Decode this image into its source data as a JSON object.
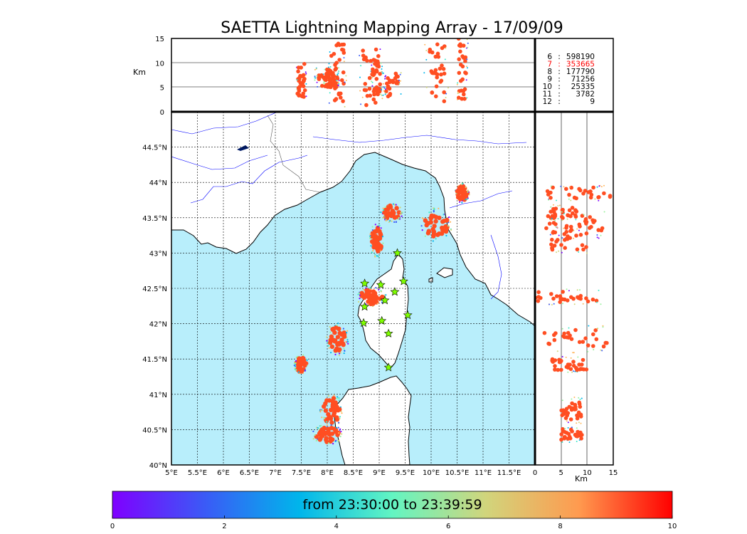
{
  "chart_data": {
    "type": "scatter",
    "title": "SAETTA Lightning Mapping Array - 17/09/09",
    "panels": {
      "map": {
        "x_ticks": [
          "5°E",
          "5.5°E",
          "6°E",
          "6.5°E",
          "7°E",
          "7.5°E",
          "8°E",
          "8.5°E",
          "9°E",
          "9.5°E",
          "10°E",
          "10.5°E",
          "11°E",
          "11.5°E"
        ],
        "y_ticks": [
          "40°N",
          "40.5°N",
          "41°N",
          "41.5°N",
          "42°N",
          "42.5°N",
          "43°N",
          "43.5°N",
          "44°N",
          "44.5°N"
        ],
        "xlim": [
          5,
          12
        ],
        "ylim": [
          40,
          45
        ]
      },
      "top": {
        "ylabel": "Km",
        "yticks": [
          "0",
          "5",
          "10",
          "15"
        ],
        "ylim": [
          0,
          15
        ]
      },
      "right": {
        "xlabel": "Km",
        "xticks": [
          "0",
          "5",
          "10",
          "15"
        ],
        "xlim": [
          0,
          15
        ]
      }
    },
    "counts_table": [
      {
        "alt": "6",
        "count": "598190",
        "highlight": false
      },
      {
        "alt": "7",
        "count": "353665",
        "highlight": true
      },
      {
        "alt": "8",
        "count": "177790",
        "highlight": false
      },
      {
        "alt": "9",
        "count": "71256",
        "highlight": false
      },
      {
        "alt": "10",
        "count": "25335",
        "highlight": false
      },
      {
        "alt": "11",
        "count": "3782",
        "highlight": false
      },
      {
        "alt": "12",
        "count": "9",
        "highlight": false
      }
    ],
    "clusters": [
      {
        "lon": 7.5,
        "lat": 41.42,
        "alt_min": 3,
        "alt_max": 10
      },
      {
        "lon": 8.2,
        "lat": 41.78,
        "alt_min": 1,
        "alt_max": 14
      },
      {
        "lon": 8.85,
        "lat": 42.38,
        "alt_min": 0,
        "alt_max": 13
      },
      {
        "lon": 8.95,
        "lat": 43.18,
        "alt_min": 3,
        "alt_max": 10
      },
      {
        "lon": 9.25,
        "lat": 43.57,
        "alt_min": 3,
        "alt_max": 8
      },
      {
        "lon": 10.1,
        "lat": 43.4,
        "alt_min": 2,
        "alt_max": 14
      },
      {
        "lon": 10.6,
        "lat": 43.85,
        "alt_min": 2,
        "alt_max": 15
      },
      {
        "lon": 8.08,
        "lat": 40.77,
        "alt_min": 5,
        "alt_max": 9
      },
      {
        "lon": 8.0,
        "lat": 40.43,
        "alt_min": 5,
        "alt_max": 9
      }
    ],
    "stations": [
      {
        "lon": 9.35,
        "lat": 43.0
      },
      {
        "lon": 8.72,
        "lat": 42.57
      },
      {
        "lon": 9.03,
        "lat": 42.55
      },
      {
        "lon": 9.47,
        "lat": 42.6
      },
      {
        "lon": 9.3,
        "lat": 42.45
      },
      {
        "lon": 9.11,
        "lat": 42.33
      },
      {
        "lon": 8.72,
        "lat": 42.24
      },
      {
        "lon": 9.55,
        "lat": 42.12
      },
      {
        "lon": 8.7,
        "lat": 42.01
      },
      {
        "lon": 9.05,
        "lat": 42.04
      },
      {
        "lon": 9.18,
        "lat": 41.86
      },
      {
        "lon": 9.18,
        "lat": 41.38
      }
    ],
    "colorbar": {
      "label": "from 23:30:00 to 23:39:59",
      "ticks": [
        "0",
        "2",
        "4",
        "6",
        "8",
        "10"
      ],
      "range": [
        0,
        10
      ],
      "colors": [
        "#7f00ff",
        "#3a5bf6",
        "#00b5eb",
        "#62f5c2",
        "#d1d57c",
        "#ff9a4f",
        "#ff0000"
      ]
    },
    "colors": {
      "sea": "#b8eefb",
      "land": "#ffffff",
      "coast": "#000000",
      "river": "#0000ff",
      "storm_core": "#ff4e22",
      "star": "#7fff00"
    }
  }
}
